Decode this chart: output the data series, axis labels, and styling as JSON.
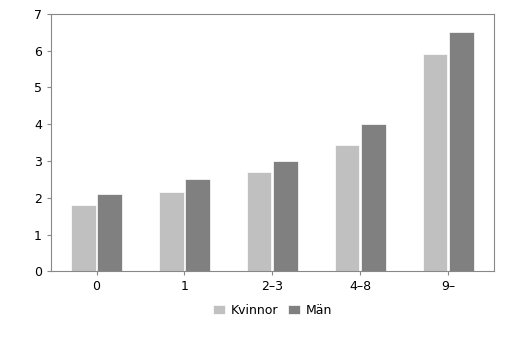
{
  "categories": [
    "0",
    "1",
    "2–3",
    "4–8",
    "9–"
  ],
  "kvinnor_values": [
    1.8,
    2.15,
    2.7,
    3.45,
    5.9
  ],
  "man_values": [
    2.1,
    2.5,
    3.0,
    4.0,
    6.5
  ],
  "kvinnor_color": "#c0c0c0",
  "man_color": "#808080",
  "ylim": [
    0,
    7
  ],
  "yticks": [
    0,
    1,
    2,
    3,
    4,
    5,
    6,
    7
  ],
  "legend_labels": [
    "Kvinnor",
    "Män"
  ],
  "bar_width": 0.28,
  "background_color": "#ffffff",
  "edge_color": "#ffffff",
  "spine_color": "#888888"
}
